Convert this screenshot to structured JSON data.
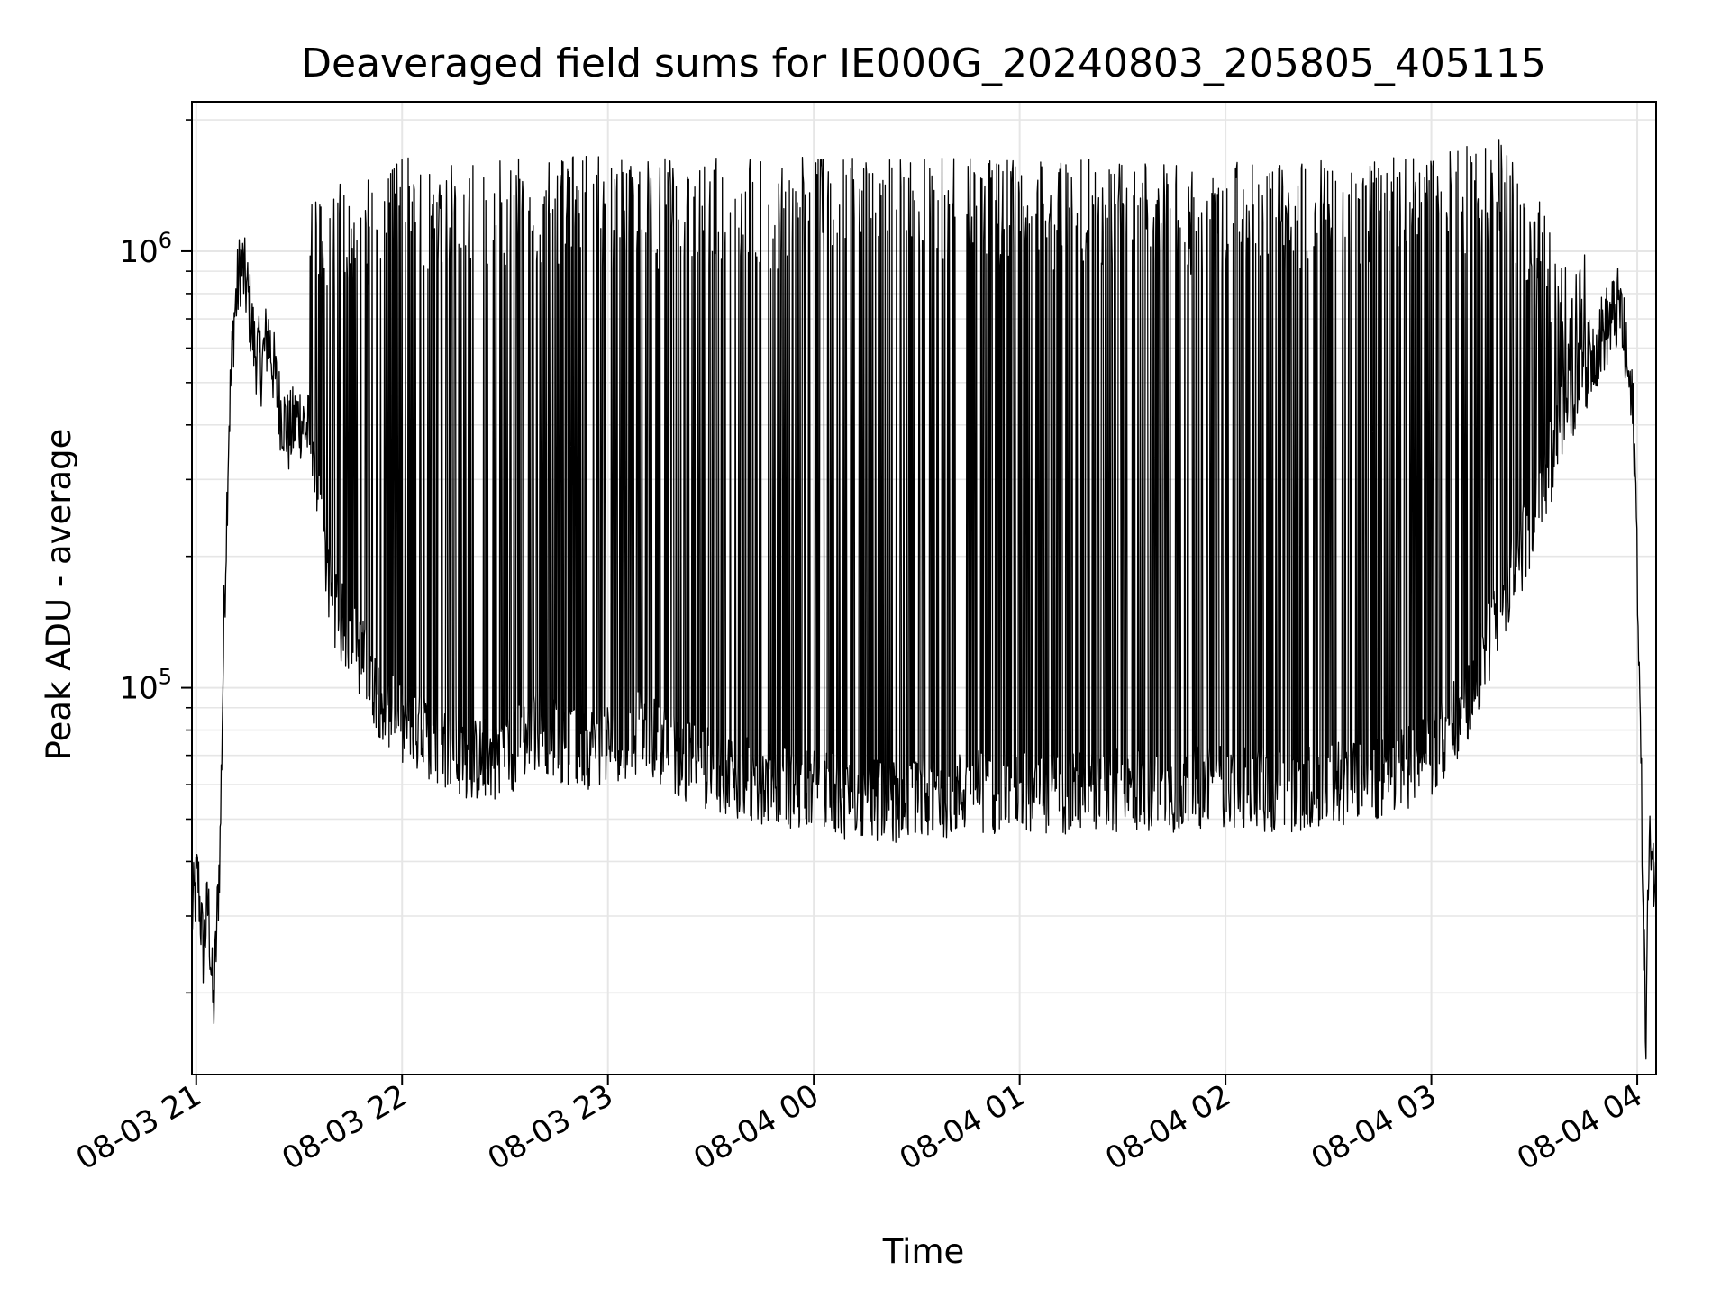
{
  "chart_data": {
    "type": "line",
    "title": "Deaveraged field sums for IE000G_20240803_205805_405115",
    "xlabel": "Time",
    "ylabel": "Peak ADU - average",
    "y_scale": "log",
    "ylim": [
      13000,
      2200000
    ],
    "xlim": [
      "2024-08-03 20:58:45",
      "2024-08-04 04:05:30"
    ],
    "grid": true,
    "line_color": "#000000",
    "grid_color": "#e6e6e6",
    "x_ticks": [
      {
        "t": "2024-08-03 21:00",
        "label": "08-03 21"
      },
      {
        "t": "2024-08-03 22:00",
        "label": "08-03 22"
      },
      {
        "t": "2024-08-03 23:00",
        "label": "08-03 23"
      },
      {
        "t": "2024-08-04 00:00",
        "label": "08-04 00"
      },
      {
        "t": "2024-08-04 01:00",
        "label": "08-04 01"
      },
      {
        "t": "2024-08-04 02:00",
        "label": "08-04 02"
      },
      {
        "t": "2024-08-04 03:00",
        "label": "08-04 03"
      },
      {
        "t": "2024-08-04 04:00",
        "label": "08-04 04"
      }
    ],
    "y_ticks": [
      {
        "value": 100000,
        "base": "10",
        "exp": "5"
      },
      {
        "value": 1000000,
        "base": "10",
        "exp": "6"
      }
    ],
    "series": [
      {
        "points": [
          [
            "2024-08-03 20:58:45",
            30000
          ],
          [
            "2024-08-03 21:00:30",
            37000
          ],
          [
            "2024-08-03 21:02:00",
            25000
          ],
          [
            "2024-08-03 21:03:30",
            32000
          ],
          [
            "2024-08-03 21:05:00",
            18000
          ],
          [
            "2024-08-03 21:06:00",
            28000
          ],
          [
            "2024-08-03 21:07:00",
            45000
          ],
          [
            "2024-08-03 21:08:00",
            130000
          ],
          [
            "2024-08-03 21:09:30",
            400000
          ],
          [
            "2024-08-03 21:11:00",
            700000
          ],
          [
            "2024-08-03 21:13:00",
            950000
          ],
          [
            "2024-08-03 21:15:00",
            800000
          ],
          [
            "2024-08-03 21:17:00",
            600000
          ],
          [
            "2024-08-03 21:19:00",
            550000
          ],
          [
            "2024-08-03 21:21:00",
            650000
          ],
          [
            "2024-08-03 21:24:00",
            450000
          ],
          [
            "2024-08-03 21:27:00",
            380000
          ],
          [
            "2024-08-03 21:30:00",
            420000
          ],
          [
            "2024-08-03 21:33:00",
            380000
          ],
          [
            "2024-08-03 21:36:00",
            250000
          ],
          [
            "2024-08-03 21:40:00",
            150000
          ],
          [
            "2024-08-03 21:45:00",
            130000
          ],
          [
            "2024-08-03 21:50:00",
            110000
          ],
          [
            "2024-08-03 21:55:00",
            90000
          ],
          [
            "2024-08-03 22:00:00",
            80000
          ],
          [
            "2024-08-03 22:10:00",
            75000
          ],
          [
            "2024-08-03 22:20:00",
            68000
          ],
          [
            "2024-08-03 22:30:00",
            70000
          ],
          [
            "2024-08-03 22:40:00",
            82000
          ],
          [
            "2024-08-03 22:50:00",
            72000
          ],
          [
            "2024-08-03 23:00:00",
            75000
          ],
          [
            "2024-08-03 23:10:00",
            80000
          ],
          [
            "2024-08-03 23:20:00",
            70000
          ],
          [
            "2024-08-03 23:30:00",
            65000
          ],
          [
            "2024-08-03 23:40:00",
            62000
          ],
          [
            "2024-08-03 23:50:00",
            60000
          ],
          [
            "2024-08-04 00:00:00",
            58000
          ],
          [
            "2024-08-04 00:15:00",
            55000
          ],
          [
            "2024-08-04 00:30:00",
            55000
          ],
          [
            "2024-08-04 00:45:00",
            58000
          ],
          [
            "2024-08-04 01:00:00",
            58000
          ],
          [
            "2024-08-04 01:15:00",
            57000
          ],
          [
            "2024-08-04 01:30:00",
            58000
          ],
          [
            "2024-08-04 01:45:00",
            58000
          ],
          [
            "2024-08-04 02:00:00",
            60000
          ],
          [
            "2024-08-04 02:15:00",
            58000
          ],
          [
            "2024-08-04 02:30:00",
            60000
          ],
          [
            "2024-08-04 02:45:00",
            62000
          ],
          [
            "2024-08-04 03:00:00",
            70000
          ],
          [
            "2024-08-04 03:10:00",
            90000
          ],
          [
            "2024-08-04 03:20:00",
            150000
          ],
          [
            "2024-08-04 03:30:00",
            250000
          ],
          [
            "2024-08-04 03:40:00",
            450000
          ],
          [
            "2024-08-04 03:50:00",
            650000
          ],
          [
            "2024-08-04 03:55:00",
            750000
          ],
          [
            "2024-08-04 03:59:00",
            400000
          ],
          [
            "2024-08-04 04:00:00",
            200000
          ],
          [
            "2024-08-04 04:01:00",
            70000
          ],
          [
            "2024-08-04 04:02:00",
            25000
          ],
          [
            "2024-08-04 04:02:30",
            15000
          ],
          [
            "2024-08-04 04:03:00",
            30000
          ],
          [
            "2024-08-04 04:04:00",
            48000
          ],
          [
            "2024-08-04 04:05:30",
            32000
          ]
        ],
        "peak_envelope": [
          [
            "2024-08-03 21:30:00",
            1300000
          ],
          [
            "2024-08-03 22:00:00",
            1650000
          ],
          [
            "2024-08-03 23:00:00",
            1650000
          ],
          [
            "2024-08-04 00:00:00",
            1650000
          ],
          [
            "2024-08-04 01:00:00",
            1650000
          ],
          [
            "2024-08-04 02:00:00",
            1600000
          ],
          [
            "2024-08-04 03:00:00",
            1650000
          ],
          [
            "2024-08-04 03:20:00",
            1850000
          ],
          [
            "2024-08-04 03:40:00",
            1000000
          ]
        ],
        "spike_region": [
          "2024-08-03 21:33:00",
          "2024-08-04 03:45:00"
        ]
      }
    ]
  }
}
